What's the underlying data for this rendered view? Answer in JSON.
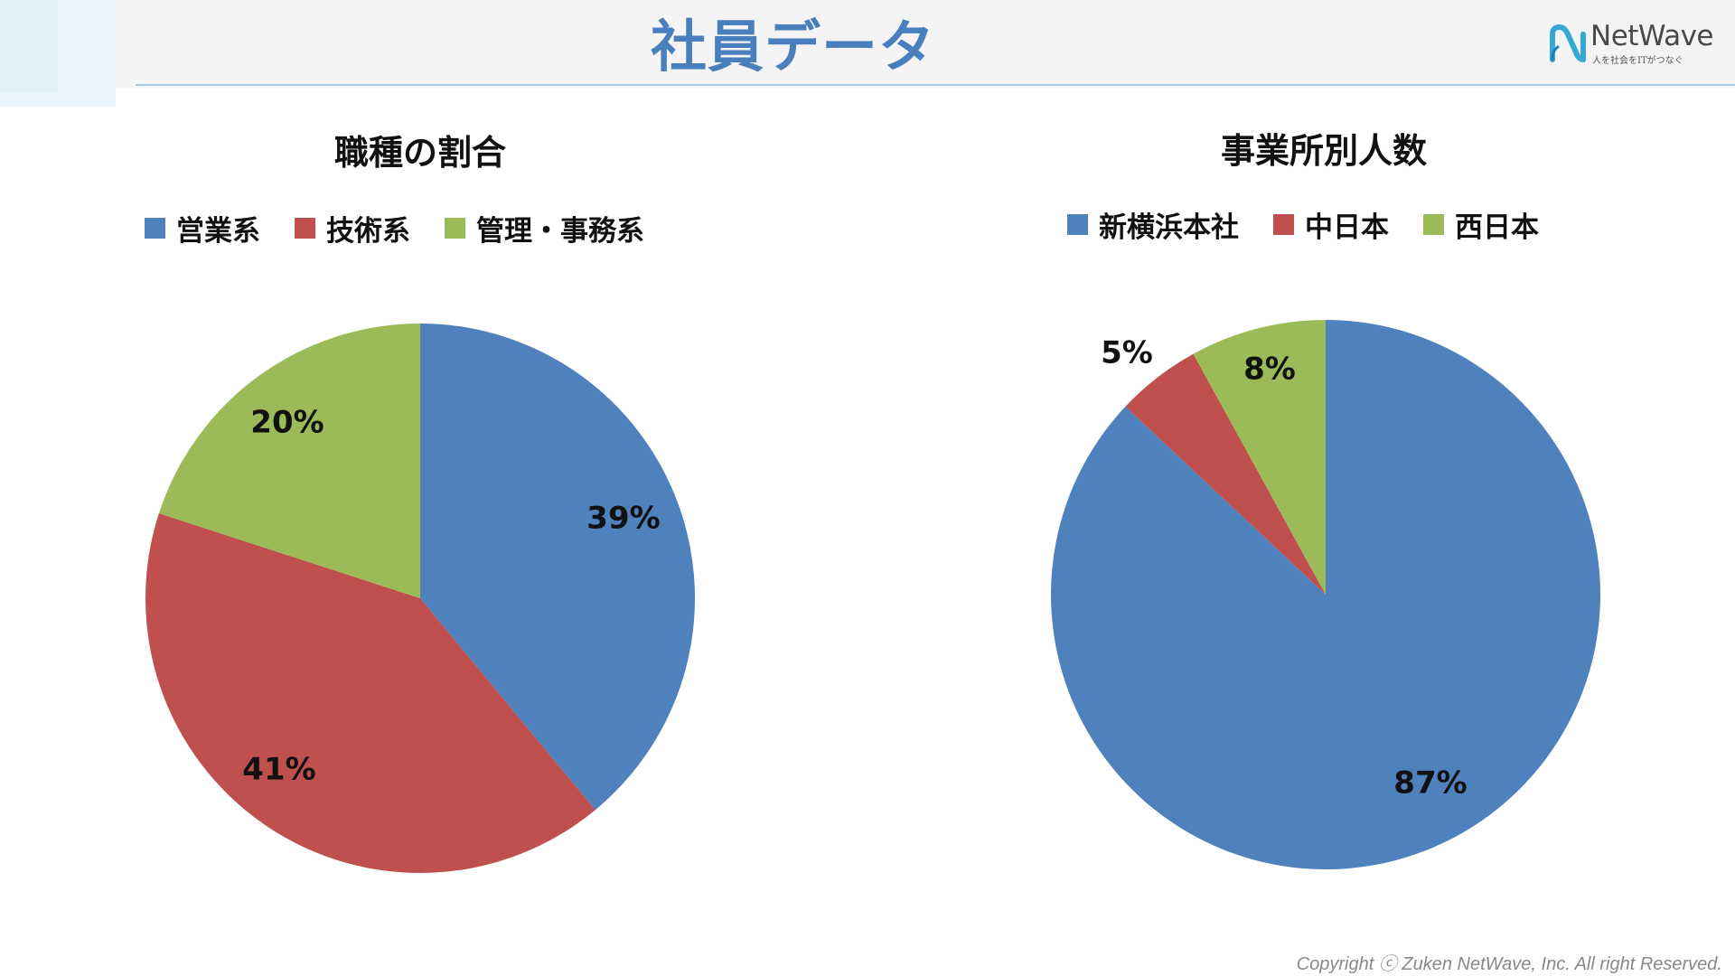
{
  "page": {
    "title": "社員データ",
    "footer": "Copyright ⓒ Zuken NetWave, Inc. All right Reserved."
  },
  "logo": {
    "name": "NetWave",
    "tagline": "人を社会をITがつなぐ",
    "icon": "netwave-logo-icon",
    "colors": {
      "mark": "#35a9d6",
      "text": "#4a4a4a"
    }
  },
  "colors": {
    "title": "#4a7fbe",
    "header_line": "#a6cde4",
    "header_band": "#f4f4f4"
  },
  "chart_data": [
    {
      "type": "pie",
      "title": "職種の割合",
      "legend_position": "top",
      "start_angle": "12 o'clock, clockwise",
      "slices": [
        {
          "label": "営業系",
          "value": 39,
          "display": "39%",
          "color": "#4f81bd"
        },
        {
          "label": "技術系",
          "value": 41,
          "display": "41%",
          "color": "#c0504d"
        },
        {
          "label": "管理・事務系",
          "value": 20,
          "display": "20%",
          "color": "#9bbb59"
        }
      ]
    },
    {
      "type": "pie",
      "title": "事業所別人数",
      "legend_position": "top",
      "start_angle": "12 o'clock, clockwise",
      "slices": [
        {
          "label": "新横浜本社",
          "value": 87,
          "display": "87%",
          "color": "#4f81bd"
        },
        {
          "label": "中日本",
          "value": 5,
          "display": "5%",
          "color": "#c0504d"
        },
        {
          "label": "西日本",
          "value": 8,
          "display": "8%",
          "color": "#9bbb59"
        }
      ]
    }
  ]
}
